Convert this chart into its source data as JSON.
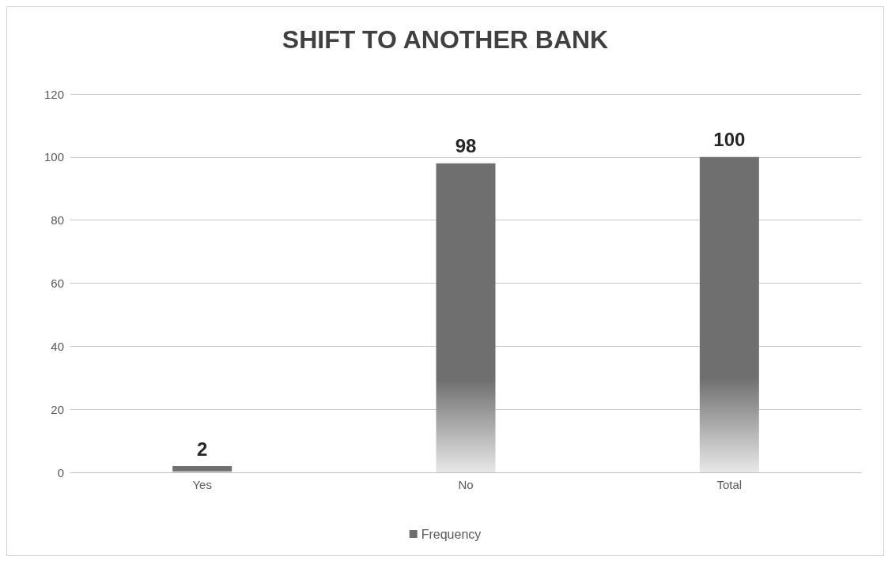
{
  "chart_data": {
    "type": "bar",
    "title": "SHIFT TO ANOTHER BANK",
    "categories": [
      "Yes",
      "No",
      "Total"
    ],
    "series": [
      {
        "name": "Frequency",
        "color": "#6f6f6f",
        "values": [
          2,
          98,
          100
        ]
      }
    ],
    "ylim": [
      0,
      120
    ],
    "yticks": [
      0,
      20,
      40,
      60,
      80,
      100,
      120
    ],
    "grid": "y",
    "legend": "bottom",
    "data_labels": true
  }
}
